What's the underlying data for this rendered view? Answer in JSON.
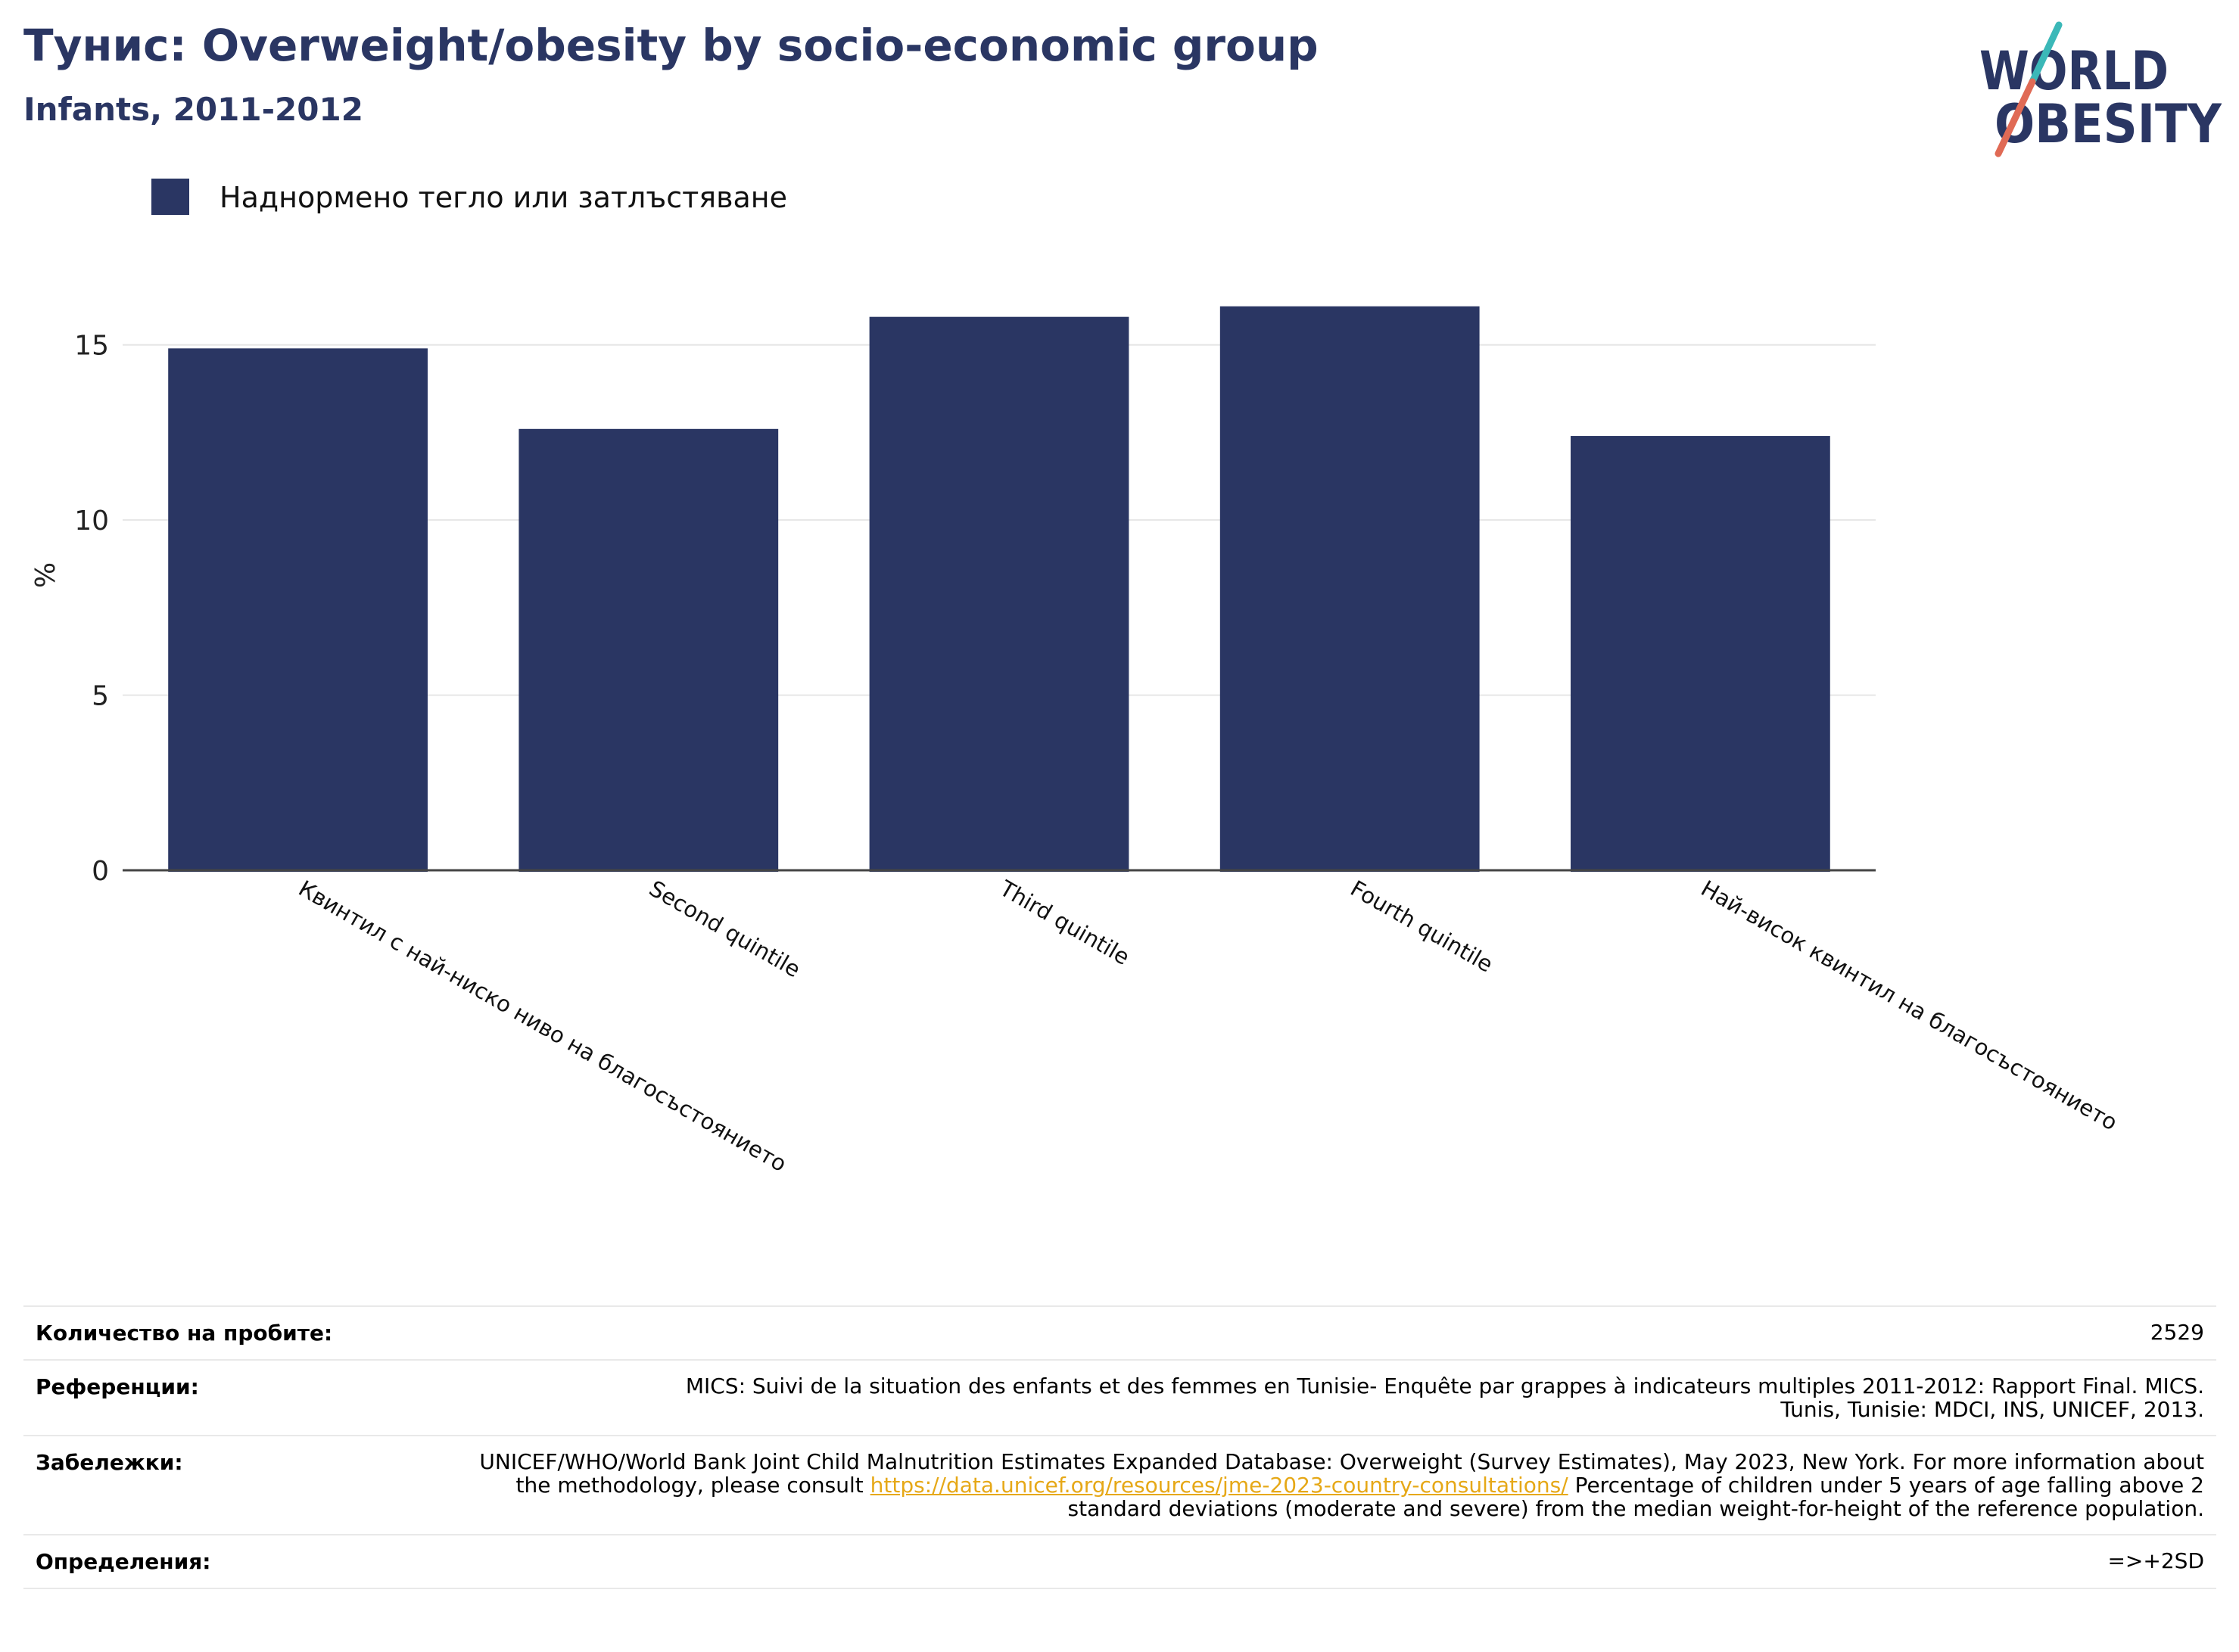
{
  "header": {
    "title": "Тунис: Overweight/obesity by socio-economic group",
    "subtitle": "Infants, 2011-2012"
  },
  "logo": {
    "line1": "WORLD",
    "line2": "OBESITY",
    "colors": {
      "text": "#2a3663",
      "slash_top": "#3bb8b8",
      "slash_bottom": "#e06a55"
    }
  },
  "chart_data": {
    "type": "bar",
    "categories": [
      "Квинтил с най-ниско ниво на благосъстоянието",
      "Second quintile",
      "Third quintile",
      "Fourth quintile",
      "Най-висок квинтил на благосъстоянието"
    ],
    "series": [
      {
        "name": "Наднормено тегло или затлъстяване",
        "values": [
          14.9,
          12.6,
          15.8,
          16.1,
          12.4
        ],
        "color": "#2a3663"
      }
    ],
    "ylabel": "%",
    "xlabel": "",
    "ylim": [
      0,
      17.5
    ],
    "yticks": [
      0,
      5,
      10,
      15
    ],
    "grid": true,
    "legend": "top-left"
  },
  "meta": {
    "sample_size": {
      "label": "Количество на пробите:",
      "value": "2529"
    },
    "references": {
      "label": "Референции:",
      "value": "MICS: Suivi de la situation des enfants et des femmes en Tunisie- Enquête par grappes à indicateurs multiples 2011-2012: Rapport Final. MICS. Tunis, Tunisie: MDCI, INS, UNICEF, 2013."
    },
    "notes": {
      "label": "Забележки:",
      "text_before": "UNICEF/WHO/World Bank Joint Child Malnutrition Estimates Expanded Database: Overweight (Survey Estimates), May 2023, New York. For more information about the methodology, please consult ",
      "link": "https://data.unicef.org/resources/jme-2023-country-consultations/",
      "text_after": " Percentage of children under 5 years of age falling above 2 standard deviations (moderate and severe) from the median weight-for-height of the reference population."
    },
    "definitions": {
      "label": "Определения:",
      "value": "=>+2SD"
    }
  }
}
